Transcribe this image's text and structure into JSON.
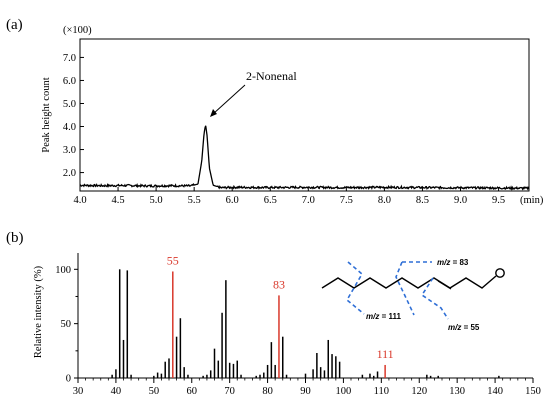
{
  "chart_data": [
    {
      "panel": "(a)",
      "type": "line",
      "xlabel": "(min)",
      "ylabel": "Peak height count",
      "y_multiplier": "(×100)",
      "xlim": [
        4.0,
        9.9
      ],
      "ylim": [
        1.2,
        7.8
      ],
      "x_ticks": [
        "4.0",
        "4.5",
        "5.0",
        "5.5",
        "6.0",
        "6.5",
        "7.0",
        "7.5",
        "8.0",
        "8.5",
        "9.0",
        "9.5"
      ],
      "y_ticks": [
        "2.0",
        "3.0",
        "4.0",
        "5.0",
        "6.0",
        "7.0"
      ],
      "annotation": "2-Nonenal",
      "series": [
        {
          "x": [
            4.0,
            4.3,
            4.6,
            4.9,
            5.2,
            5.45,
            5.55,
            5.6,
            5.63,
            5.65,
            5.67,
            5.7,
            5.75,
            5.85,
            6.0,
            6.5,
            7.0,
            7.5,
            8.0,
            8.5,
            9.0,
            9.5,
            9.9
          ],
          "y": [
            1.45,
            1.43,
            1.44,
            1.42,
            1.43,
            1.42,
            1.5,
            2.5,
            3.7,
            4.08,
            3.6,
            2.2,
            1.45,
            1.34,
            1.36,
            1.35,
            1.36,
            1.35,
            1.36,
            1.35,
            1.34,
            1.33,
            1.32
          ]
        }
      ]
    },
    {
      "panel": "(b)",
      "type": "bar",
      "xlabel": "",
      "ylabel": "Relative intensity (%)",
      "xlim": [
        30,
        150
      ],
      "ylim": [
        0,
        115
      ],
      "x_ticks": [
        "30",
        "40",
        "50",
        "60",
        "70",
        "80",
        "90",
        "100",
        "110",
        "120",
        "130",
        "140",
        "150"
      ],
      "y_ticks": [
        "0",
        "50",
        "100"
      ],
      "series": [
        {
          "x": [
            39,
            40,
            41,
            42,
            43,
            44,
            50,
            51,
            52,
            53,
            54,
            55,
            56,
            57,
            58,
            59,
            63,
            64,
            65,
            66,
            67,
            68,
            69,
            70,
            71,
            72,
            73,
            77,
            78,
            79,
            80,
            81,
            82,
            83,
            84,
            85,
            90,
            92,
            93,
            94,
            95,
            96,
            97,
            98,
            99,
            105,
            107,
            108,
            109,
            111,
            122,
            123,
            125,
            141
          ],
          "values": [
            3,
            8,
            100,
            35,
            99,
            3,
            2,
            5,
            4,
            15,
            18,
            98,
            38,
            55,
            10,
            3,
            2,
            3,
            7,
            27,
            16,
            60,
            90,
            14,
            13,
            16,
            3,
            2,
            3,
            5,
            12,
            33,
            12,
            76,
            38,
            3,
            4,
            8,
            23,
            10,
            7,
            35,
            22,
            20,
            15,
            3,
            4,
            2,
            6,
            12,
            3,
            2,
            2,
            2
          ]
        }
      ],
      "highlighted_labels": [
        {
          "mz": 55,
          "label": "55"
        },
        {
          "mz": 83,
          "label": "83"
        },
        {
          "mz": 111,
          "label": "111"
        }
      ],
      "structure_labels": {
        "prefix": "m/z",
        "eq": " = ",
        "f83": "83",
        "f111": "111",
        "f55": "55"
      }
    }
  ],
  "colors": {
    "highlight": "#d9382b",
    "bars": "#000000",
    "fragment_lines": "#2f6fd6"
  }
}
